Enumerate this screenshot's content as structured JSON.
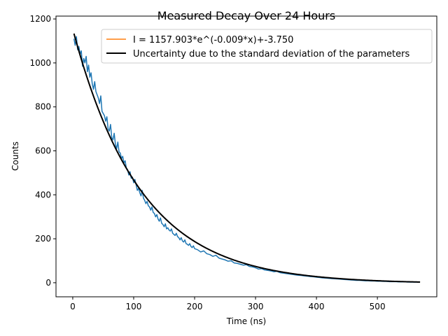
{
  "chart_data": {
    "type": "line",
    "title": "Measured Decay Over 24 Hours",
    "xlabel": "Time (ns)",
    "ylabel": "Counts",
    "xlim": [
      -27.5,
      597.5
    ],
    "ylim": [
      -64,
      1213
    ],
    "x_ticks": [
      0,
      100,
      200,
      300,
      400,
      500
    ],
    "y_ticks": [
      0,
      200,
      400,
      600,
      800,
      1000,
      1200
    ],
    "grid": false,
    "legend_position": "top-right",
    "series": [
      {
        "name": "",
        "role": "measured data (noisy)",
        "color": "#1f77b4",
        "x_range": [
          2,
          570
        ],
        "points": [
          [
            2,
            1110
          ],
          [
            4,
            1080
          ],
          [
            6,
            1120
          ],
          [
            8,
            1060
          ],
          [
            10,
            1075
          ],
          [
            12,
            1040
          ],
          [
            14,
            1055
          ],
          [
            16,
            985
          ],
          [
            18,
            1020
          ],
          [
            20,
            1000
          ],
          [
            22,
            1030
          ],
          [
            24,
            960
          ],
          [
            26,
            990
          ],
          [
            28,
            935
          ],
          [
            30,
            955
          ],
          [
            32,
            905
          ],
          [
            34,
            880
          ],
          [
            36,
            915
          ],
          [
            38,
            870
          ],
          [
            40,
            855
          ],
          [
            42,
            840
          ],
          [
            44,
            815
          ],
          [
            46,
            850
          ],
          [
            48,
            780
          ],
          [
            50,
            770
          ],
          [
            52,
            760
          ],
          [
            54,
            735
          ],
          [
            56,
            755
          ],
          [
            58,
            700
          ],
          [
            60,
            690
          ],
          [
            62,
            720
          ],
          [
            64,
            660
          ],
          [
            66,
            650
          ],
          [
            68,
            680
          ],
          [
            70,
            630
          ],
          [
            72,
            610
          ],
          [
            74,
            640
          ],
          [
            76,
            595
          ],
          [
            78,
            590
          ],
          [
            80,
            565
          ],
          [
            82,
            575
          ],
          [
            84,
            545
          ],
          [
            86,
            555
          ],
          [
            88,
            520
          ],
          [
            90,
            515
          ],
          [
            92,
            490
          ],
          [
            94,
            505
          ],
          [
            96,
            475
          ],
          [
            98,
            480
          ],
          [
            100,
            455
          ],
          [
            102,
            470
          ],
          [
            104,
            445
          ],
          [
            106,
            420
          ],
          [
            108,
            430
          ],
          [
            110,
            410
          ],
          [
            112,
            395
          ],
          [
            114,
            420
          ],
          [
            116,
            385
          ],
          [
            118,
            375
          ],
          [
            120,
            360
          ],
          [
            122,
            370
          ],
          [
            124,
            350
          ],
          [
            126,
            345
          ],
          [
            128,
            330
          ],
          [
            130,
            345
          ],
          [
            132,
            320
          ],
          [
            134,
            315
          ],
          [
            136,
            300
          ],
          [
            138,
            310
          ],
          [
            140,
            290
          ],
          [
            142,
            280
          ],
          [
            144,
            295
          ],
          [
            146,
            270
          ],
          [
            148,
            265
          ],
          [
            150,
            255
          ],
          [
            152,
            268
          ],
          [
            154,
            245
          ],
          [
            156,
            250
          ],
          [
            158,
            240
          ],
          [
            160,
            235
          ],
          [
            162,
            245
          ],
          [
            164,
            225
          ],
          [
            166,
            220
          ],
          [
            168,
            215
          ],
          [
            170,
            225
          ],
          [
            172,
            210
          ],
          [
            174,
            205
          ],
          [
            176,
            195
          ],
          [
            178,
            205
          ],
          [
            180,
            190
          ],
          [
            182,
            185
          ],
          [
            184,
            195
          ],
          [
            186,
            178
          ],
          [
            188,
            175
          ],
          [
            190,
            170
          ],
          [
            192,
            178
          ],
          [
            194,
            165
          ],
          [
            196,
            160
          ],
          [
            198,
            168
          ],
          [
            200,
            155
          ],
          [
            205,
            150
          ],
          [
            210,
            140
          ],
          [
            215,
            145
          ],
          [
            220,
            132
          ],
          [
            225,
            128
          ],
          [
            230,
            120
          ],
          [
            235,
            125
          ],
          [
            240,
            112
          ],
          [
            245,
            108
          ],
          [
            250,
            104
          ],
          [
            255,
            98
          ],
          [
            260,
            100
          ],
          [
            265,
            90
          ],
          [
            270,
            88
          ],
          [
            275,
            84
          ],
          [
            280,
            80
          ],
          [
            285,
            82
          ],
          [
            290,
            74
          ],
          [
            295,
            72
          ],
          [
            300,
            68
          ],
          [
            305,
            62
          ],
          [
            310,
            64
          ],
          [
            315,
            58
          ],
          [
            320,
            56
          ],
          [
            325,
            54
          ],
          [
            330,
            50
          ],
          [
            335,
            52
          ],
          [
            340,
            46
          ],
          [
            345,
            44
          ],
          [
            350,
            42
          ],
          [
            355,
            40
          ],
          [
            360,
            38
          ],
          [
            365,
            36
          ],
          [
            370,
            34
          ],
          [
            375,
            33
          ],
          [
            380,
            31
          ],
          [
            385,
            30
          ],
          [
            390,
            28
          ],
          [
            395,
            27
          ],
          [
            400,
            25
          ],
          [
            405,
            24
          ],
          [
            410,
            22
          ],
          [
            415,
            21
          ],
          [
            420,
            20
          ],
          [
            425,
            19
          ],
          [
            430,
            18
          ],
          [
            435,
            17
          ],
          [
            440,
            16
          ],
          [
            445,
            15
          ],
          [
            450,
            14
          ],
          [
            455,
            13
          ],
          [
            460,
            12
          ],
          [
            465,
            11
          ],
          [
            470,
            11
          ],
          [
            475,
            10
          ],
          [
            480,
            9
          ],
          [
            485,
            9
          ],
          [
            490,
            8
          ],
          [
            495,
            8
          ],
          [
            500,
            7
          ],
          [
            505,
            7
          ],
          [
            510,
            6
          ],
          [
            515,
            6
          ],
          [
            520,
            5
          ],
          [
            525,
            5
          ],
          [
            530,
            5
          ],
          [
            535,
            4
          ],
          [
            540,
            4
          ],
          [
            545,
            4
          ],
          [
            550,
            3
          ],
          [
            555,
            3
          ],
          [
            560,
            3
          ],
          [
            565,
            3
          ],
          [
            570,
            2
          ]
        ]
      },
      {
        "name": "I = 1157.903*e^(-0.009*x)+-3.750",
        "role": "exponential fit",
        "color": "#ff7f0e",
        "model": {
          "A": 1157.903,
          "k": 0.009,
          "C": -3.75
        },
        "x_range": [
          2,
          570
        ]
      },
      {
        "name": "Uncertainty due to the standard deviation of the parameters",
        "role": "fit uncertainty curve",
        "color": "#000000",
        "model": {
          "A": 1157.903,
          "k": 0.009,
          "C": -3.75
        },
        "x_range": [
          2,
          570
        ]
      }
    ]
  }
}
